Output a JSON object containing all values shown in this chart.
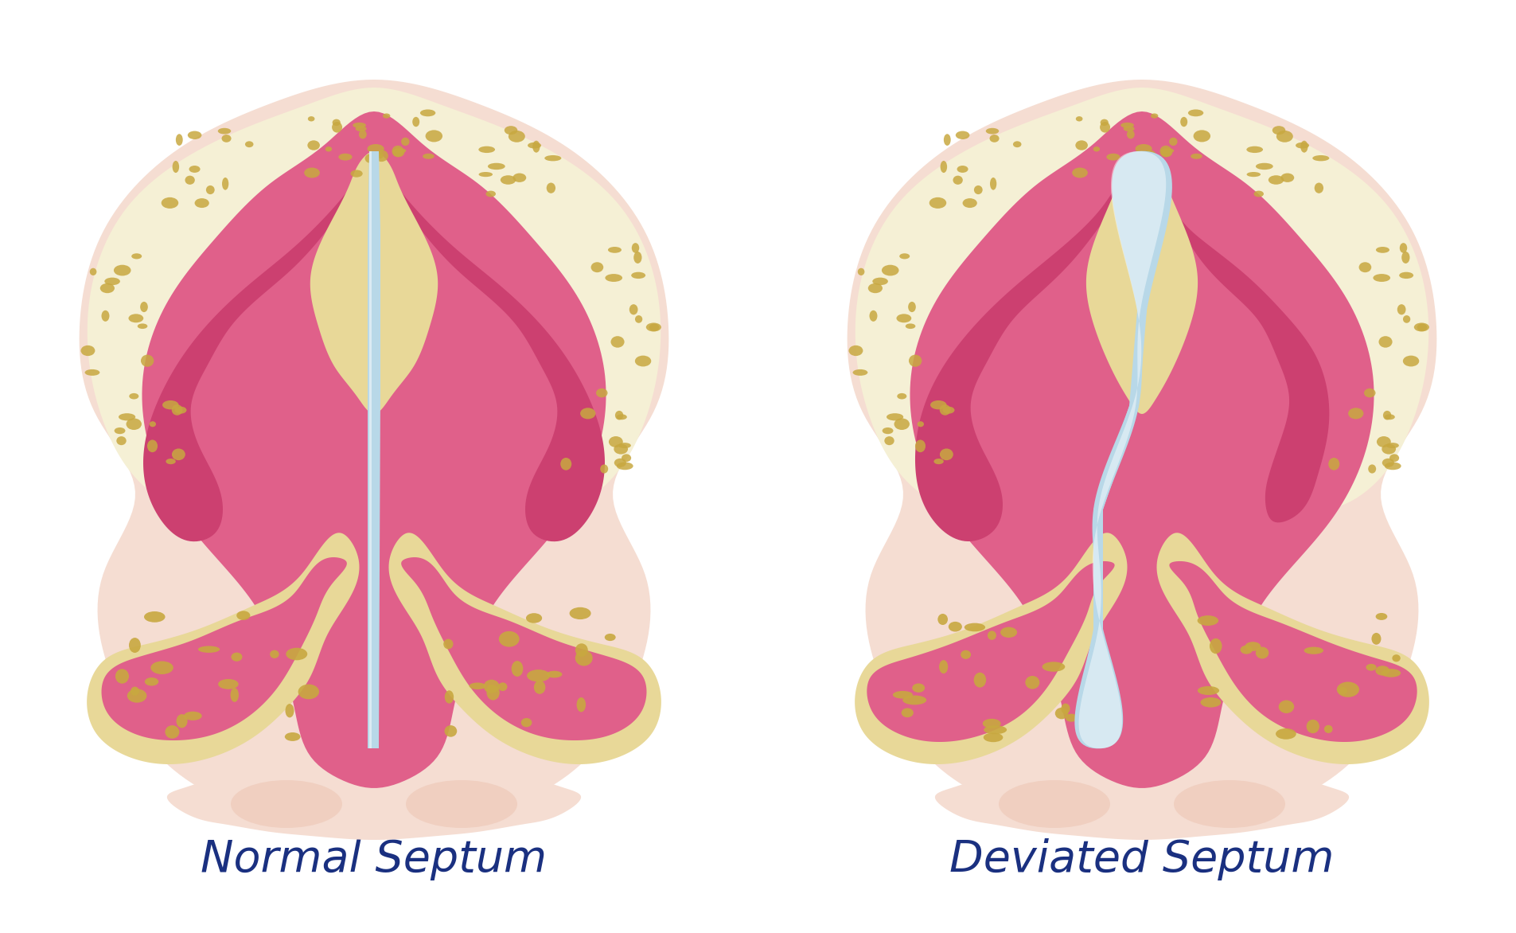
{
  "title_left": "Normal Septum",
  "title_right": "Deviated Septum",
  "title_color": "#1a3080",
  "title_fontsize": 40,
  "bg_color": "#ffffff",
  "skin_outer": "#f5ddd2",
  "skin_inner": "#f0cfc0",
  "pink_main": "#e0608a",
  "pink_dark": "#cc4070",
  "pink_medium": "#e87898",
  "bone_tan": "#e8d898",
  "bone_dark": "#c8a840",
  "bone_light": "#f5f0d5",
  "septum_blue": "#b8d8e8",
  "septum_light": "#ddeef8",
  "white": "#ffffff"
}
